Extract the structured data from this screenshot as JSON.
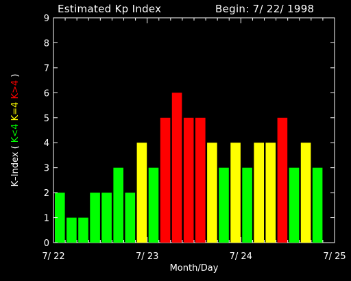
{
  "title_left": "Estimated Kp Index",
  "title_right": "Begin: 7/ 22/ 1998",
  "chart_data": {
    "type": "bar",
    "xlabel": "Month/Day",
    "ylabel_prefix": "K–Index",
    "legend": [
      {
        "text": "K<4",
        "color": "#00ff00"
      },
      {
        "text": "K=4",
        "color": "#ffff00"
      },
      {
        "text": "K>4",
        "color": "#ff0000"
      }
    ],
    "ylim": [
      0,
      9
    ],
    "yticks": [
      "0",
      "1",
      "2",
      "3",
      "4",
      "5",
      "6",
      "7",
      "8",
      "9"
    ],
    "xticks": [
      "7/ 22",
      "7/ 23",
      "7/ 24",
      "7/ 25"
    ],
    "values": [
      2,
      1,
      1,
      2,
      2,
      3,
      2,
      4,
      3,
      5,
      6,
      5,
      5,
      4,
      3,
      4,
      3,
      4,
      4,
      5,
      3,
      4,
      3
    ],
    "colors": {
      "low": "#00ff00",
      "eq": "#ffff00",
      "high": "#ff0000"
    }
  }
}
